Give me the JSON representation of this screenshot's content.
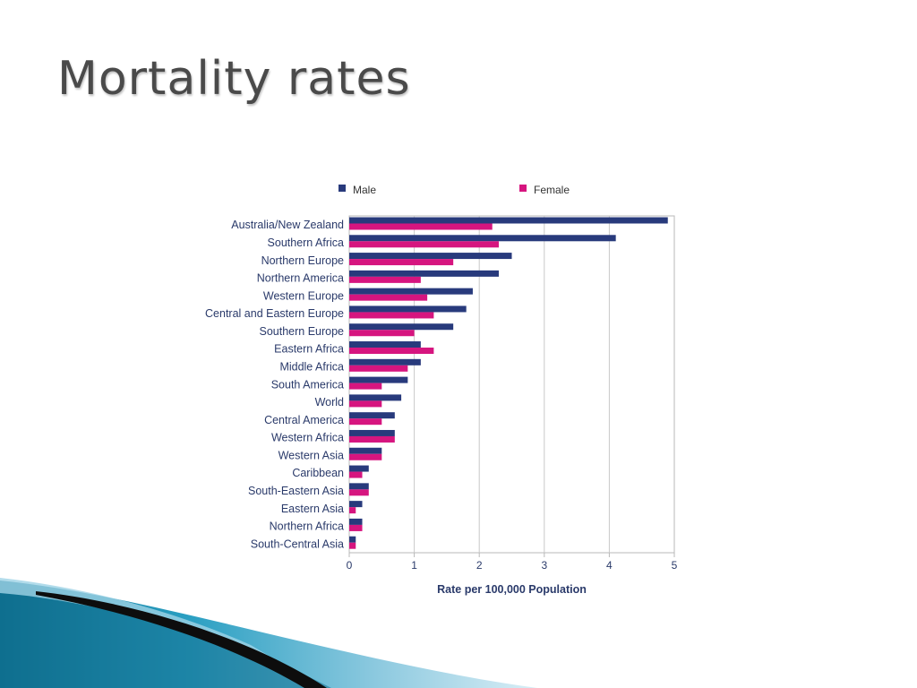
{
  "slide": {
    "title": "Mortality rates"
  },
  "colors": {
    "male": "#283a7c",
    "female": "#d6157f",
    "grid": "#c9c9c9",
    "frame": "#b8b8b8"
  },
  "chart_data": {
    "type": "bar",
    "orientation": "horizontal",
    "categories": [
      "Australia/New Zealand",
      "Southern Africa",
      "Northern Europe",
      "Northern America",
      "Western Europe",
      "Central and Eastern Europe",
      "Southern Europe",
      "Eastern Africa",
      "Middle Africa",
      "South America",
      "World",
      "Central America",
      "Western Africa",
      "Western Asia",
      "Caribbean",
      "South-Eastern Asia",
      "Eastern Asia",
      "Northern Africa",
      "South-Central Asia"
    ],
    "series": [
      {
        "name": "Male",
        "values": [
          4.9,
          4.1,
          2.5,
          2.3,
          1.9,
          1.8,
          1.6,
          1.1,
          1.1,
          0.9,
          0.8,
          0.7,
          0.7,
          0.5,
          0.3,
          0.3,
          0.2,
          0.2,
          0.1
        ]
      },
      {
        "name": "Female",
        "values": [
          2.2,
          2.3,
          1.6,
          1.1,
          1.2,
          1.3,
          1.0,
          1.3,
          0.9,
          0.5,
          0.5,
          0.5,
          0.7,
          0.5,
          0.2,
          0.3,
          0.1,
          0.2,
          0.1
        ]
      }
    ],
    "xlabel": "Rate per 100,000 Population",
    "ylabel": "",
    "xlim": [
      0,
      5
    ],
    "xticks": [
      0,
      1,
      2,
      3,
      4,
      5
    ],
    "grid": true,
    "legend": "top"
  }
}
